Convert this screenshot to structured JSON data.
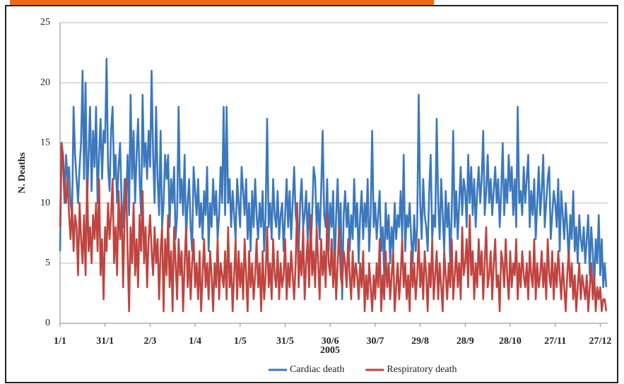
{
  "chart_data": {
    "type": "line",
    "y_label": "N. Deaths",
    "x_label": "2005",
    "xlim": [
      1,
      366
    ],
    "ylim": [
      0,
      25
    ],
    "yticks": [
      0,
      5,
      10,
      15,
      20,
      25
    ],
    "xticks": [
      {
        "value": 1,
        "label": "1/1"
      },
      {
        "value": 31,
        "label": "31/1"
      },
      {
        "value": 61,
        "label": "2/3"
      },
      {
        "value": 91,
        "label": "1/4"
      },
      {
        "value": 121,
        "label": "1/5"
      },
      {
        "value": 151,
        "label": "31/5"
      },
      {
        "value": 181,
        "label": "30/6"
      },
      {
        "value": 211,
        "label": "30/7"
      },
      {
        "value": 241,
        "label": "29/8"
      },
      {
        "value": 271,
        "label": "28/9"
      },
      {
        "value": 301,
        "label": "28/10"
      },
      {
        "value": 331,
        "label": "27/11"
      },
      {
        "value": 361,
        "label": "27/12"
      }
    ],
    "grid": true,
    "legend": "bottom",
    "x": [
      1,
      2,
      3,
      4,
      5,
      6,
      7,
      8,
      9,
      10,
      11,
      12,
      13,
      14,
      15,
      16,
      17,
      18,
      19,
      20,
      21,
      22,
      23,
      24,
      25,
      26,
      27,
      28,
      29,
      30,
      31,
      32,
      33,
      34,
      35,
      36,
      37,
      38,
      39,
      40,
      41,
      42,
      43,
      44,
      45,
      46,
      47,
      48,
      49,
      50,
      51,
      52,
      53,
      54,
      55,
      56,
      57,
      58,
      59,
      60,
      61,
      62,
      63,
      64,
      65,
      66,
      67,
      68,
      69,
      70,
      71,
      72,
      73,
      74,
      75,
      76,
      77,
      78,
      79,
      80,
      81,
      82,
      83,
      84,
      85,
      86,
      87,
      88,
      89,
      90,
      91,
      92,
      93,
      94,
      95,
      96,
      97,
      98,
      99,
      100,
      101,
      102,
      103,
      104,
      105,
      106,
      107,
      108,
      109,
      110,
      111,
      112,
      113,
      114,
      115,
      116,
      117,
      118,
      119,
      120,
      121,
      122,
      123,
      124,
      125,
      126,
      127,
      128,
      129,
      130,
      131,
      132,
      133,
      134,
      135,
      136,
      137,
      138,
      139,
      140,
      141,
      142,
      143,
      144,
      145,
      146,
      147,
      148,
      149,
      150,
      151,
      152,
      153,
      154,
      155,
      156,
      157,
      158,
      159,
      160,
      161,
      162,
      163,
      164,
      165,
      166,
      167,
      168,
      169,
      170,
      171,
      172,
      173,
      174,
      175,
      176,
      177,
      178,
      179,
      180,
      181,
      182,
      183,
      184,
      185,
      186,
      187,
      188,
      189,
      190,
      191,
      192,
      193,
      194,
      195,
      196,
      197,
      198,
      199,
      200,
      201,
      202,
      203,
      204,
      205,
      206,
      207,
      208,
      209,
      210,
      211,
      212,
      213,
      214,
      215,
      216,
      217,
      218,
      219,
      220,
      221,
      222,
      223,
      224,
      225,
      226,
      227,
      228,
      229,
      230,
      231,
      232,
      233,
      234,
      235,
      236,
      237,
      238,
      239,
      240,
      241,
      242,
      243,
      244,
      245,
      246,
      247,
      248,
      249,
      250,
      251,
      252,
      253,
      254,
      255,
      256,
      257,
      258,
      259,
      260,
      261,
      262,
      263,
      264,
      265,
      266,
      267,
      268,
      269,
      270,
      271,
      272,
      273,
      274,
      275,
      276,
      277,
      278,
      279,
      280,
      281,
      282,
      283,
      284,
      285,
      286,
      287,
      288,
      289,
      290,
      291,
      292,
      293,
      294,
      295,
      296,
      297,
      298,
      299,
      300,
      301,
      302,
      303,
      304,
      305,
      306,
      307,
      308,
      309,
      310,
      311,
      312,
      313,
      314,
      315,
      316,
      317,
      318,
      319,
      320,
      321,
      322,
      323,
      324,
      325,
      326,
      327,
      328,
      329,
      330,
      331,
      332,
      333,
      334,
      335,
      336,
      337,
      338,
      339,
      340,
      341,
      342,
      343,
      344,
      345,
      346,
      347,
      348,
      349,
      350,
      351,
      352,
      353,
      354,
      355,
      356,
      357,
      358,
      359,
      360,
      361,
      362,
      363,
      364,
      365
    ],
    "series": [
      {
        "name": "Cardiac death",
        "color": "#3b78bd",
        "values": [
          6,
          15,
          13,
          10,
          14,
          12,
          13,
          10,
          9,
          18,
          14,
          12,
          10,
          13,
          15,
          21,
          12,
          20,
          10,
          14,
          18,
          11,
          16,
          13,
          18,
          10,
          14,
          17,
          12,
          16,
          15,
          22,
          13,
          11,
          16,
          18,
          12,
          14,
          10,
          13,
          15,
          10,
          8,
          12,
          10,
          14,
          9,
          19,
          12,
          16,
          10,
          14,
          17,
          12,
          9,
          19,
          13,
          15,
          12,
          16,
          13,
          21,
          14,
          10,
          18,
          12,
          9,
          16,
          8,
          10,
          14,
          12,
          14,
          8,
          12,
          10,
          13,
          7,
          9,
          18,
          10,
          12,
          9,
          14,
          7,
          10,
          12,
          8,
          6,
          13,
          11,
          9,
          12,
          8,
          10,
          7,
          11,
          9,
          13,
          6,
          10,
          8,
          12,
          9,
          11,
          7,
          9,
          13,
          10,
          18,
          9,
          18,
          10,
          12,
          8,
          11,
          9,
          7,
          12,
          10,
          8,
          13,
          11,
          9,
          12,
          7,
          10,
          6,
          11,
          8,
          12,
          9,
          7,
          10,
          8,
          11,
          6,
          9,
          17,
          8,
          10,
          7,
          12,
          9,
          8,
          11,
          7,
          9,
          10,
          6,
          9,
          12,
          8,
          11,
          7,
          10,
          13,
          9,
          8,
          6,
          10,
          12,
          8,
          9,
          11,
          7,
          10,
          6,
          9,
          13,
          12,
          8,
          10,
          7,
          11,
          16,
          9,
          8,
          12,
          6,
          10,
          8,
          11,
          4,
          9,
          12,
          7,
          10,
          2,
          9,
          11,
          8,
          10,
          6,
          9,
          7,
          12,
          8,
          10,
          5,
          9,
          11,
          7,
          10,
          8,
          12,
          6,
          9,
          16,
          8,
          10,
          7,
          9,
          11,
          6,
          8,
          4,
          10,
          7,
          9,
          5,
          8,
          6,
          10,
          7,
          9,
          8,
          11,
          7,
          14,
          6,
          9,
          8,
          10,
          7,
          5,
          9,
          6,
          8,
          19,
          10,
          7,
          12,
          9,
          8,
          6,
          11,
          14,
          7,
          9,
          8,
          17,
          10,
          7,
          12,
          9,
          6,
          11,
          8,
          10,
          5,
          9,
          16,
          8,
          11,
          7,
          10,
          13,
          9,
          12,
          11,
          8,
          14,
          10,
          13,
          9,
          12,
          8,
          11,
          13,
          10,
          12,
          16,
          9,
          11,
          14,
          10,
          12,
          9,
          11,
          13,
          10,
          12,
          8,
          11,
          15,
          9,
          12,
          10,
          14,
          11,
          13,
          9,
          12,
          8,
          18,
          10,
          11,
          9,
          13,
          10,
          12,
          14,
          8,
          11,
          9,
          12,
          7,
          10,
          13,
          9,
          11,
          14,
          8,
          10,
          12,
          13,
          7,
          9,
          11,
          10,
          8,
          12,
          6,
          11,
          9,
          7,
          10,
          8,
          5,
          9,
          7,
          11,
          6,
          8,
          5,
          9,
          7,
          6,
          8,
          5,
          7,
          9,
          4,
          8,
          6,
          3,
          7,
          5,
          9,
          4,
          7,
          3,
          5,
          3
        ]
      },
      {
        "name": "Respiratory death",
        "color": "#c0443f",
        "values": [
          8,
          15,
          14,
          11,
          10,
          12,
          9,
          7,
          10,
          6,
          9,
          8,
          4,
          10,
          7,
          5,
          9,
          4,
          12,
          6,
          8,
          5,
          9,
          7,
          10,
          6,
          12,
          4,
          7,
          2,
          8,
          6,
          10,
          7,
          9,
          12,
          5,
          8,
          4,
          11,
          7,
          10,
          3,
          9,
          12,
          6,
          1,
          8,
          5,
          10,
          4,
          7,
          3,
          9,
          6,
          11,
          5,
          8,
          3,
          7,
          9,
          6,
          4,
          8,
          5,
          7,
          2,
          6,
          8,
          1,
          7,
          4,
          9,
          3,
          6,
          1,
          8,
          5,
          2,
          7,
          4,
          6,
          1,
          5,
          8,
          3,
          6,
          2,
          5,
          7,
          3,
          5,
          2,
          6,
          1,
          4,
          7,
          3,
          5,
          2,
          6,
          4,
          1,
          5,
          3,
          7,
          2,
          5,
          4,
          3,
          6,
          2,
          8,
          3,
          5,
          1,
          4,
          7,
          2,
          6,
          3,
          5,
          2,
          7,
          4,
          1,
          6,
          3,
          5,
          2,
          4,
          7,
          3,
          5,
          1,
          6,
          2,
          4,
          8,
          3,
          5,
          2,
          7,
          4,
          3,
          6,
          2,
          5,
          3,
          4,
          7,
          2,
          5,
          3,
          6,
          4,
          2,
          5,
          10,
          3,
          6,
          4,
          8,
          2,
          5,
          7,
          3,
          9,
          4,
          6,
          3,
          8,
          5,
          2,
          7,
          4,
          6,
          3,
          9,
          5,
          4,
          7,
          3,
          6,
          2,
          5,
          8,
          4,
          3,
          6,
          5,
          3,
          7,
          4,
          2,
          6,
          3,
          5,
          4,
          2,
          5,
          3,
          6,
          1,
          4,
          2,
          5,
          3,
          1,
          4,
          2,
          5,
          3,
          7,
          1,
          4,
          2,
          6,
          3,
          5,
          2,
          4,
          6,
          1,
          3,
          5,
          2,
          4,
          7,
          3,
          5,
          2,
          4,
          1,
          6,
          3,
          5,
          2,
          4,
          7,
          3,
          5,
          2,
          6,
          4,
          1,
          5,
          3,
          7,
          2,
          4,
          6,
          2,
          5,
          3,
          1,
          6,
          4,
          2,
          5,
          3,
          7,
          2,
          4,
          6,
          3,
          5,
          2,
          8,
          4,
          5,
          7,
          3,
          9,
          4,
          6,
          2,
          5,
          3,
          7,
          4,
          6,
          2,
          5,
          8,
          3,
          4,
          6,
          2,
          5,
          7,
          3,
          4,
          1,
          6,
          5,
          3,
          7,
          4,
          2,
          6,
          3,
          5,
          4,
          7,
          2,
          5,
          3,
          6,
          4,
          3,
          5,
          2,
          6,
          4,
          3,
          7,
          2,
          5,
          3,
          4,
          6,
          3,
          5,
          2,
          7,
          4,
          3,
          6,
          2,
          5,
          3,
          6,
          4,
          2,
          5,
          3,
          1,
          4,
          6,
          3,
          5,
          2,
          4,
          1,
          3,
          5,
          2,
          4,
          3,
          2,
          4,
          1,
          3,
          5,
          2,
          4,
          1,
          3,
          2,
          3,
          1,
          2,
          2,
          1
        ]
      }
    ]
  }
}
